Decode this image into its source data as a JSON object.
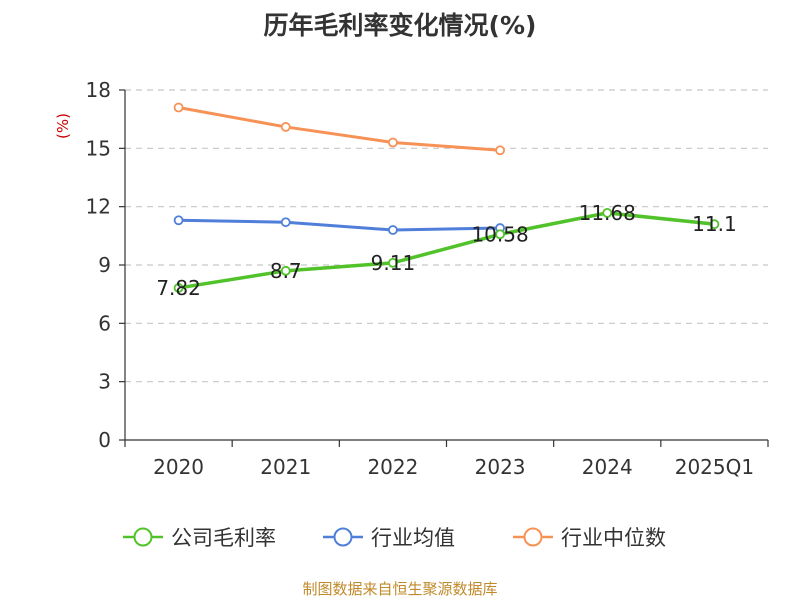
{
  "chart_data": {
    "type": "line",
    "title": "历年毛利率变化情况(%)",
    "ylabel": "(%)",
    "xlabel": "",
    "categories": [
      "2020",
      "2021",
      "2022",
      "2023",
      "2024",
      "2025Q1"
    ],
    "ylim": [
      0,
      18
    ],
    "yticks": [
      0,
      3,
      6,
      9,
      12,
      15,
      18
    ],
    "grid": "horizontal dashed",
    "legend_position": "bottom",
    "series": [
      {
        "name": "公司毛利率",
        "color": "#52c22b",
        "values": [
          7.82,
          8.7,
          9.11,
          10.58,
          11.68,
          11.1
        ],
        "labels": [
          "7.82",
          "8.7",
          "9.11",
          "10.58",
          "11.68",
          "11.1"
        ]
      },
      {
        "name": "行业均值",
        "color": "#4f7fd9",
        "values": [
          11.3,
          11.2,
          10.8,
          10.9,
          null,
          null
        ]
      },
      {
        "name": "行业中位数",
        "color": "#f79256",
        "values": [
          17.1,
          16.1,
          15.3,
          14.9,
          null,
          null
        ]
      }
    ]
  },
  "footer": {
    "source": "制图数据来自恒生聚源数据库"
  }
}
